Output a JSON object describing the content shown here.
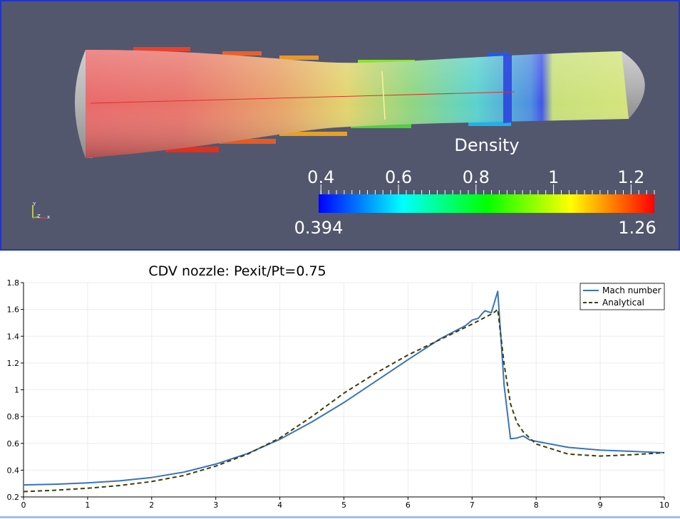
{
  "viewport": {
    "color_legend": {
      "title": "Density",
      "ticks": [
        0.4,
        0.6,
        0.8,
        1,
        1.2
      ],
      "tick_labels": [
        "0.4",
        "0.6",
        "0.8",
        "1",
        "1.2"
      ],
      "range": [
        0.394,
        1.26
      ],
      "min_label": "0.394",
      "max_label": "1.26",
      "gradient_colors": [
        "#0000ff",
        "#00ffff",
        "#00ff00",
        "#ffff00",
        "#ff0000"
      ]
    },
    "axes_triad": {
      "x_label": "x",
      "y_label": "Y",
      "z_label": "Z"
    },
    "colors": {
      "background": "#52576e",
      "border": "#1f35c8"
    }
  },
  "chart_data": {
    "type": "line",
    "title": "CDV nozzle: Pexit/Pt=0.75",
    "xlabel": "",
    "ylabel": "",
    "xlim": [
      0,
      10
    ],
    "ylim": [
      0.2,
      1.8
    ],
    "xticks": [
      0,
      1,
      2,
      3,
      4,
      5,
      6,
      7,
      8,
      9,
      10
    ],
    "xtick_labels": [
      "0",
      "1",
      "2",
      "3",
      "4",
      "5",
      "6",
      "7",
      "8",
      "9",
      "10"
    ],
    "yticks": [
      0.2,
      0.4,
      0.6,
      0.8,
      1,
      1.2,
      1.4,
      1.6,
      1.8
    ],
    "ytick_labels": [
      "0.2",
      "0.4",
      "0.6",
      "0.8",
      "1",
      "1.2",
      "1.4",
      "1.6",
      "1.8"
    ],
    "grid": true,
    "legend_position": "top-right",
    "series": [
      {
        "name": "Mach number",
        "color": "#3a74b6",
        "style": "solid",
        "x": [
          0,
          0.5,
          1,
          1.5,
          2,
          2.5,
          3,
          3.5,
          4,
          4.5,
          5,
          5.5,
          6,
          6.5,
          6.9,
          7.0,
          7.1,
          7.15,
          7.2,
          7.3,
          7.4,
          7.5,
          7.6,
          7.7,
          7.8,
          7.9,
          8.0,
          8.5,
          9,
          9.5,
          10
        ],
        "y": [
          0.29,
          0.295,
          0.305,
          0.32,
          0.345,
          0.385,
          0.445,
          0.525,
          0.63,
          0.76,
          0.905,
          1.065,
          1.225,
          1.38,
          1.48,
          1.52,
          1.535,
          1.565,
          1.59,
          1.575,
          1.735,
          1.03,
          0.635,
          0.64,
          0.655,
          0.625,
          0.615,
          0.57,
          0.55,
          0.54,
          0.53
        ]
      },
      {
        "name": "Analytical",
        "color": "#3d3d0a",
        "style": "dashed",
        "x": [
          0,
          0.5,
          1,
          1.5,
          2,
          2.5,
          3,
          3.5,
          4,
          4.5,
          5,
          5.5,
          6,
          6.5,
          7,
          7.2,
          7.3,
          7.35,
          7.4,
          7.5,
          7.6,
          7.7,
          7.8,
          8.0,
          8.5,
          9,
          9.5,
          10
        ],
        "y": [
          0.24,
          0.25,
          0.265,
          0.285,
          0.315,
          0.36,
          0.43,
          0.52,
          0.64,
          0.8,
          0.975,
          1.125,
          1.26,
          1.375,
          1.49,
          1.54,
          1.565,
          1.58,
          1.6,
          1.19,
          0.895,
          0.755,
          0.685,
          0.595,
          0.52,
          0.505,
          0.515,
          0.53
        ]
      }
    ]
  }
}
